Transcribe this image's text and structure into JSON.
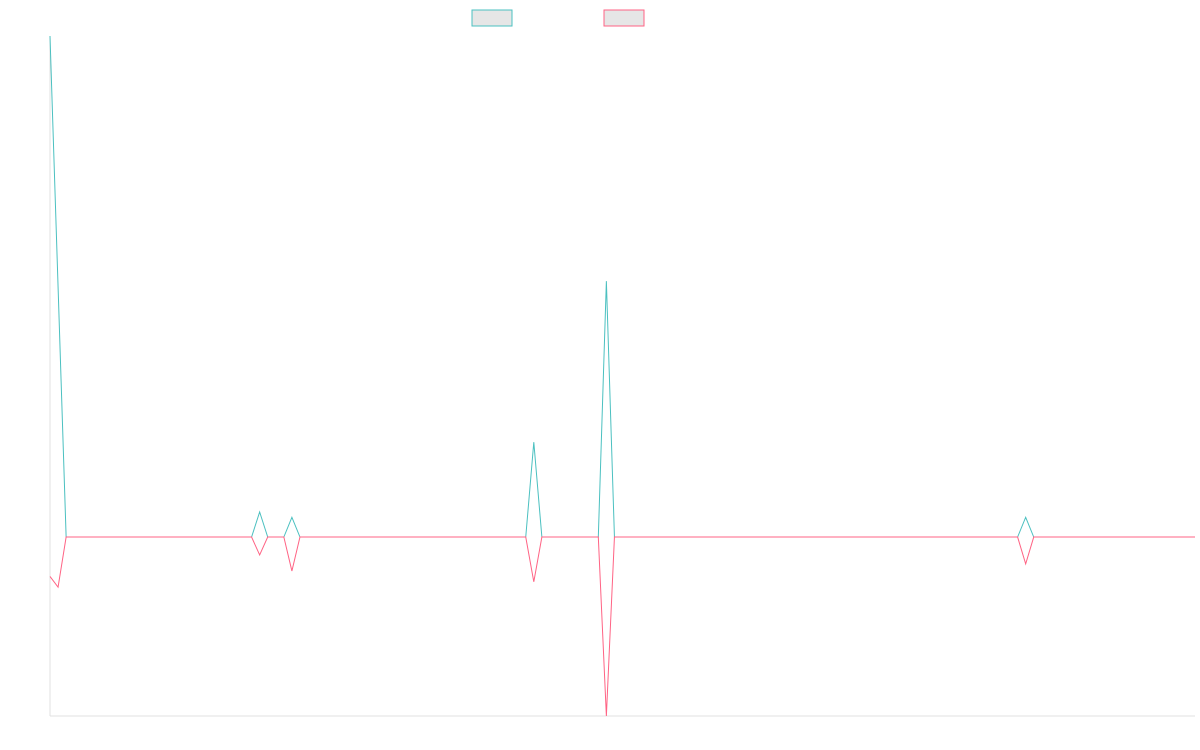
{
  "chart_data": {
    "type": "line",
    "title": "",
    "xlabel": "",
    "ylabel": "",
    "legend": {
      "position": "top-center"
    },
    "grid": false,
    "xlim": [
      0,
      142
    ],
    "ylim": [
      -1,
      2.8
    ],
    "colors": {
      "series1": "#4bc0c0",
      "series2": "#ff6384",
      "legend_fill": "#e6e6e6",
      "axis": "#e0e0e0"
    },
    "x": [
      0,
      1,
      2,
      3,
      4,
      5,
      6,
      7,
      8,
      9,
      10,
      11,
      12,
      13,
      14,
      15,
      16,
      17,
      18,
      19,
      20,
      21,
      22,
      23,
      24,
      25,
      26,
      27,
      28,
      29,
      30,
      31,
      32,
      33,
      34,
      35,
      36,
      37,
      38,
      39,
      40,
      41,
      42,
      43,
      44,
      45,
      46,
      47,
      48,
      49,
      50,
      51,
      52,
      53,
      54,
      55,
      56,
      57,
      58,
      59,
      60,
      61,
      62,
      63,
      64,
      65,
      66,
      67,
      68,
      69,
      70,
      71,
      72,
      73,
      74,
      75,
      76,
      77,
      78,
      79,
      80,
      81,
      82,
      83,
      84,
      85,
      86,
      87,
      88,
      89,
      90,
      91,
      92,
      93,
      94,
      95,
      96,
      97,
      98,
      99,
      100,
      101,
      102,
      103,
      104,
      105,
      106,
      107,
      108,
      109,
      110,
      111,
      112,
      113,
      114,
      115,
      116,
      117,
      118,
      119,
      120,
      121,
      122,
      123,
      124,
      125,
      126,
      127,
      128,
      129,
      130,
      131,
      132,
      133,
      134,
      135,
      136,
      137,
      138,
      139,
      140,
      141,
      142
    ],
    "series": [
      {
        "values": [
          2.8,
          1.4,
          0,
          0,
          0,
          0,
          0,
          0,
          0,
          0,
          0,
          0,
          0,
          0,
          0,
          0,
          0,
          0,
          0,
          0,
          0,
          0,
          0,
          0,
          0,
          0,
          0.14,
          0,
          0,
          0,
          0.11,
          0,
          0,
          0,
          0,
          0,
          0,
          0,
          0,
          0,
          0,
          0,
          0,
          0,
          0,
          0,
          0,
          0,
          0,
          0,
          0,
          0,
          0,
          0,
          0,
          0,
          0,
          0,
          0,
          0,
          0.53,
          0,
          0,
          0,
          0,
          0,
          0,
          0,
          0,
          1.43,
          0,
          0,
          0,
          0,
          0,
          0,
          0,
          0,
          0,
          0,
          0,
          0,
          0,
          0,
          0,
          0,
          0,
          0,
          0,
          0,
          0,
          0,
          0,
          0,
          0,
          0,
          0,
          0,
          0,
          0,
          0,
          0,
          0,
          0,
          0,
          0,
          0,
          0,
          0,
          0,
          0,
          0,
          0,
          0,
          0,
          0,
          0,
          0,
          0,
          0,
          0,
          0.11,
          0,
          0,
          0,
          0,
          0,
          0,
          0,
          0,
          0,
          0,
          0,
          0,
          0,
          0,
          0,
          0,
          0,
          0,
          0,
          0,
          0
        ]
      },
      {
        "values": [
          -0.22,
          -0.28,
          0,
          0,
          0,
          0,
          0,
          0,
          0,
          0,
          0,
          0,
          0,
          0,
          0,
          0,
          0,
          0,
          0,
          0,
          0,
          0,
          0,
          0,
          0,
          0,
          -0.1,
          0,
          0,
          0,
          -0.19,
          0,
          0,
          0,
          0,
          0,
          0,
          0,
          0,
          0,
          0,
          0,
          0,
          0,
          0,
          0,
          0,
          0,
          0,
          0,
          0,
          0,
          0,
          0,
          0,
          0,
          0,
          0,
          0,
          0,
          -0.25,
          0,
          0,
          0,
          0,
          0,
          0,
          0,
          0,
          -1,
          0,
          0,
          0,
          0,
          0,
          0,
          0,
          0,
          0,
          0,
          0,
          0,
          0,
          0,
          0,
          0,
          0,
          0,
          0,
          0,
          0,
          0,
          0,
          0,
          0,
          0,
          0,
          0,
          0,
          0,
          0,
          0,
          0,
          0,
          0,
          0,
          0,
          0,
          0,
          0,
          0,
          0,
          0,
          0,
          0,
          0,
          0,
          0,
          0,
          0,
          0,
          -0.15,
          0,
          0,
          0,
          0,
          0,
          0,
          0,
          0,
          0,
          0,
          0,
          0,
          0,
          0,
          0,
          0,
          0,
          0,
          0,
          0,
          0
        ]
      }
    ]
  }
}
